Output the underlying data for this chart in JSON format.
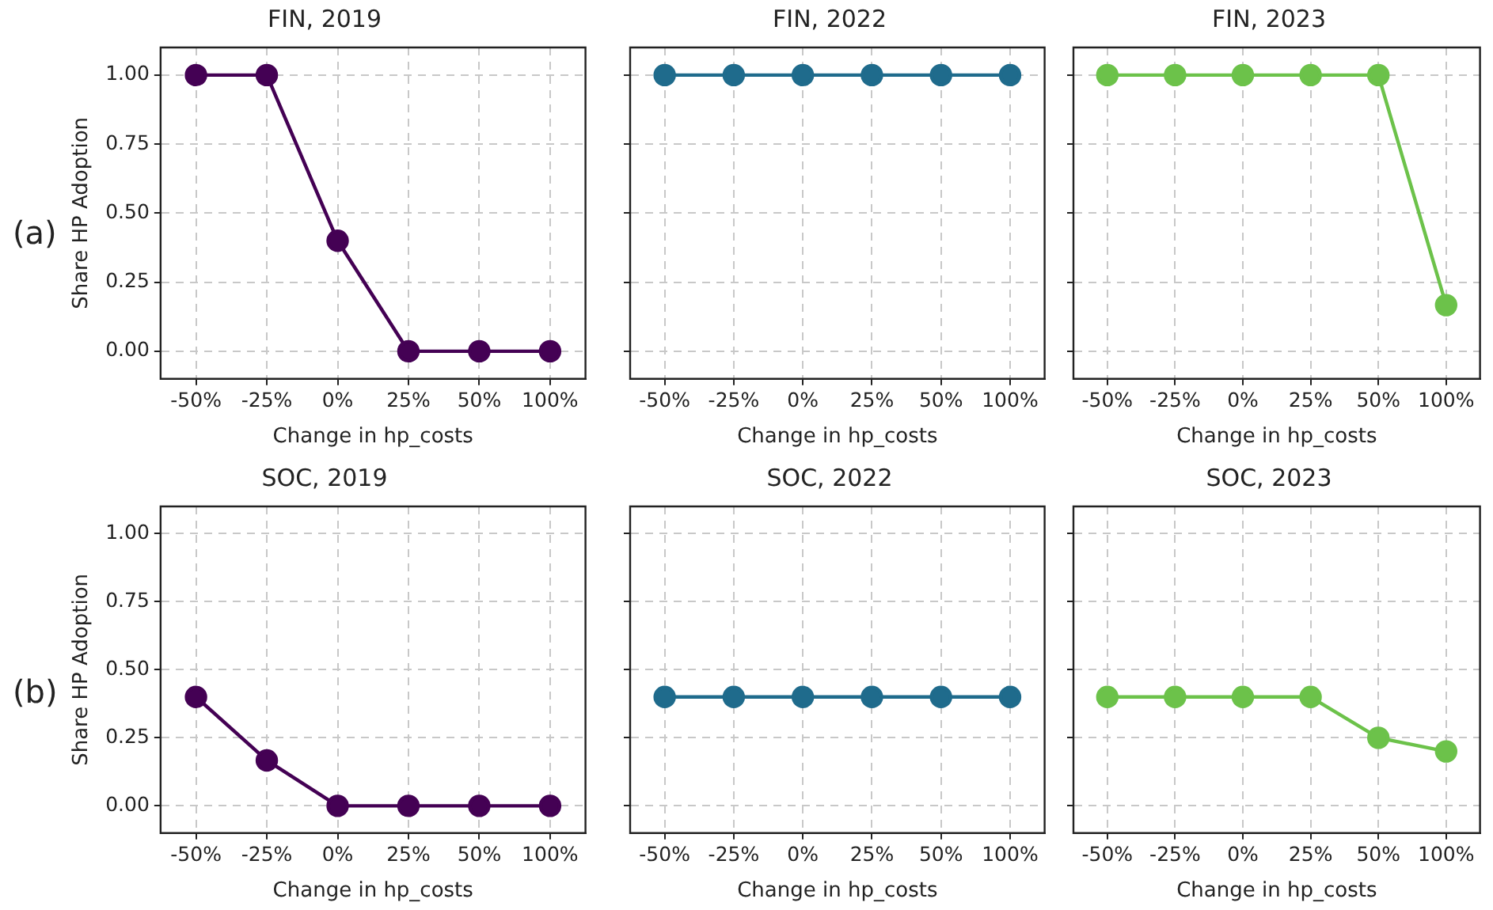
{
  "chart_data": [
    {
      "type": "line",
      "title": "FIN, 2019",
      "xlabel": "Change in hp_costs",
      "ylabel": "Share HP Adoption",
      "annotations": [
        "(a)"
      ],
      "categories": [
        "-50%",
        "-25%",
        "0%",
        "25%",
        "50%",
        "100%"
      ],
      "series": [
        {
          "color": "#440154",
          "values": [
            1,
            1,
            0.4,
            0,
            0,
            0
          ]
        }
      ],
      "ylim": [
        -0.1,
        1.1
      ],
      "yticks": [
        {
          "value": 0,
          "label": "0.00"
        },
        {
          "value": 0.25,
          "label": "0.25"
        },
        {
          "value": 0.5,
          "label": "0.50"
        },
        {
          "value": 0.75,
          "label": "0.75"
        },
        {
          "value": 1,
          "label": "1.00"
        }
      ],
      "grid": true,
      "marker": "circle",
      "line_style": "solid"
    },
    {
      "type": "line",
      "title": "FIN, 2022",
      "xlabel": "Change in hp_costs",
      "categories": [
        "-50%",
        "-25%",
        "0%",
        "25%",
        "50%",
        "100%"
      ],
      "series": [
        {
          "color": "#1f6b8c",
          "values": [
            1,
            1,
            1,
            1,
            1,
            1
          ]
        }
      ],
      "ylim": [
        -0.1,
        1.1
      ],
      "yticks": [
        {
          "value": 0,
          "label": null
        },
        {
          "value": 0.25,
          "label": null
        },
        {
          "value": 0.5,
          "label": null
        },
        {
          "value": 0.75,
          "label": null
        },
        {
          "value": 1,
          "label": null
        }
      ],
      "tick_labels": "x",
      "grid": true,
      "marker": "circle",
      "line_style": "solid"
    },
    {
      "type": "line",
      "title": "FIN, 2023",
      "xlabel": "Change in hp_costs",
      "categories": [
        "-50%",
        "-25%",
        "0%",
        "25%",
        "50%",
        "100%"
      ],
      "series": [
        {
          "color": "#6cc24a",
          "values": [
            1,
            1,
            1,
            1,
            1,
            0.167
          ]
        }
      ],
      "ylim": [
        -0.1,
        1.1
      ],
      "yticks": [
        {
          "value": 0,
          "label": null
        },
        {
          "value": 0.25,
          "label": null
        },
        {
          "value": 0.5,
          "label": null
        },
        {
          "value": 0.75,
          "label": null
        },
        {
          "value": 1,
          "label": null
        }
      ],
      "tick_labels": "x",
      "grid": true,
      "marker": "circle",
      "line_style": "solid"
    },
    {
      "type": "line",
      "title": "SOC, 2019",
      "xlabel": "Change in hp_costs",
      "ylabel": "Share HP Adoption",
      "annotations": [
        "(b)"
      ],
      "categories": [
        "-50%",
        "-25%",
        "0%",
        "25%",
        "50%",
        "100%"
      ],
      "series": [
        {
          "color": "#440154",
          "values": [
            0.4,
            0.167,
            0,
            0,
            0,
            0
          ]
        }
      ],
      "ylim": [
        -0.1,
        1.1
      ],
      "yticks": [
        {
          "value": 0,
          "label": "0.00"
        },
        {
          "value": 0.25,
          "label": "0.25"
        },
        {
          "value": 0.5,
          "label": "0.50"
        },
        {
          "value": 0.75,
          "label": "0.75"
        },
        {
          "value": 1,
          "label": "1.00"
        }
      ],
      "grid": true,
      "marker": "circle",
      "line_style": "solid"
    },
    {
      "type": "line",
      "title": "SOC, 2022",
      "xlabel": "Change in hp_costs",
      "categories": [
        "-50%",
        "-25%",
        "0%",
        "25%",
        "50%",
        "100%"
      ],
      "series": [
        {
          "color": "#1f6b8c",
          "values": [
            0.4,
            0.4,
            0.4,
            0.4,
            0.4,
            0.4
          ]
        }
      ],
      "ylim": [
        -0.1,
        1.1
      ],
      "yticks": [
        {
          "value": 0,
          "label": null
        },
        {
          "value": 0.25,
          "label": null
        },
        {
          "value": 0.5,
          "label": null
        },
        {
          "value": 0.75,
          "label": null
        },
        {
          "value": 1,
          "label": null
        }
      ],
      "tick_labels": "x",
      "grid": true,
      "marker": "circle",
      "line_style": "solid"
    },
    {
      "type": "line",
      "title": "SOC, 2023",
      "xlabel": "Change in hp_costs",
      "categories": [
        "-50%",
        "-25%",
        "0%",
        "25%",
        "50%",
        "100%"
      ],
      "series": [
        {
          "color": "#6cc24a",
          "values": [
            0.4,
            0.4,
            0.4,
            0.4,
            0.25,
            0.2
          ]
        }
      ],
      "ylim": [
        -0.1,
        1.1
      ],
      "yticks": [
        {
          "value": 0,
          "label": null
        },
        {
          "value": 0.25,
          "label": null
        },
        {
          "value": 0.5,
          "label": null
        },
        {
          "value": 0.75,
          "label": null
        },
        {
          "value": 1,
          "label": null
        }
      ],
      "tick_labels": "x",
      "grid": true,
      "marker": "circle",
      "line_style": "solid"
    }
  ]
}
